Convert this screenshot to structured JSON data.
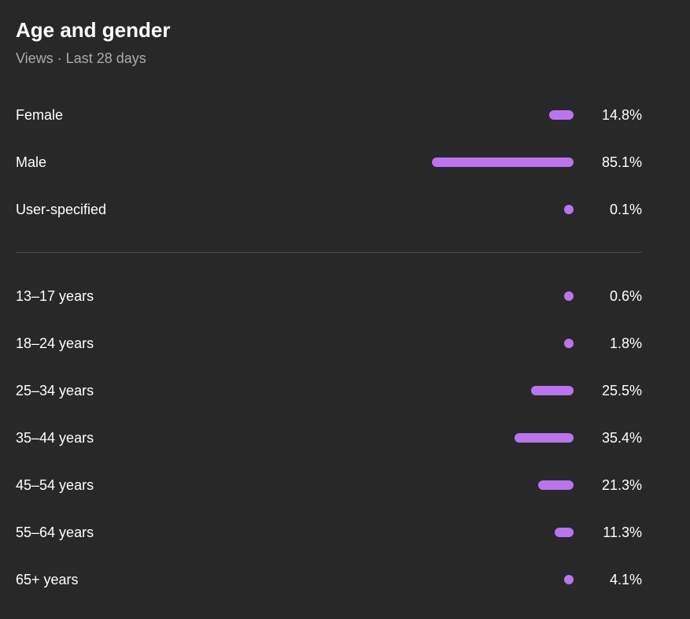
{
  "header": {
    "title": "Age and gender",
    "subtitle": "Views · Last 28 days"
  },
  "gender": [
    {
      "label": "Female",
      "value": 14.8,
      "value_label": "14.8%"
    },
    {
      "label": "Male",
      "value": 85.1,
      "value_label": "85.1%"
    },
    {
      "label": "User-specified",
      "value": 0.1,
      "value_label": "0.1%"
    }
  ],
  "age": [
    {
      "label": "13–17 years",
      "value": 0.6,
      "value_label": "0.6%"
    },
    {
      "label": "18–24 years",
      "value": 1.8,
      "value_label": "1.8%"
    },
    {
      "label": "25–34 years",
      "value": 25.5,
      "value_label": "25.5%"
    },
    {
      "label": "35–44 years",
      "value": 35.4,
      "value_label": "35.4%"
    },
    {
      "label": "45–54 years",
      "value": 21.3,
      "value_label": "21.3%"
    },
    {
      "label": "55–64 years",
      "value": 11.3,
      "value_label": "11.3%"
    },
    {
      "label": "65+ years",
      "value": 4.1,
      "value_label": "4.1%"
    }
  ]
}
